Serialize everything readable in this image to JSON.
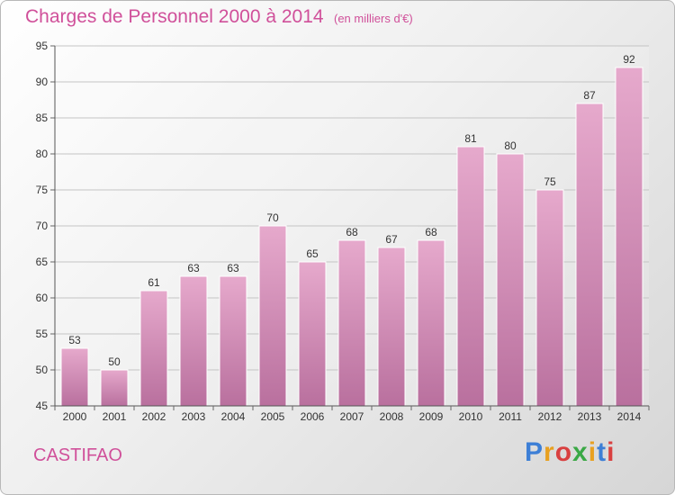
{
  "title": "Charges de Personnel 2000 à 2014",
  "subtitle": "(en milliers d'€)",
  "commune": "CASTIFAO",
  "logo": {
    "text": "Proxiti",
    "colors": [
      "#3d7fd6",
      "#e8a020",
      "#d94040",
      "#3aa845",
      "#e8a020",
      "#3d7fd6",
      "#d94040"
    ]
  },
  "colors": {
    "accent": "#d0509a",
    "bar_top": "#e6a9cc",
    "bar_bottom": "#b9709e"
  },
  "chart_data": {
    "type": "bar",
    "categories": [
      "2000",
      "2001",
      "2002",
      "2003",
      "2004",
      "2005",
      "2006",
      "2007",
      "2008",
      "2009",
      "2010",
      "2011",
      "2012",
      "2013",
      "2014"
    ],
    "values": [
      53,
      50,
      61,
      63,
      63,
      70,
      65,
      68,
      67,
      68,
      81,
      80,
      75,
      87,
      92
    ],
    "title": "Charges de Personnel 2000 à 2014",
    "subtitle": "(en milliers d'€)",
    "ylim": [
      45,
      95
    ],
    "yticks": [
      45,
      50,
      55,
      60,
      65,
      70,
      75,
      80,
      85,
      90,
      95
    ],
    "grid": true,
    "data_labels": true
  }
}
